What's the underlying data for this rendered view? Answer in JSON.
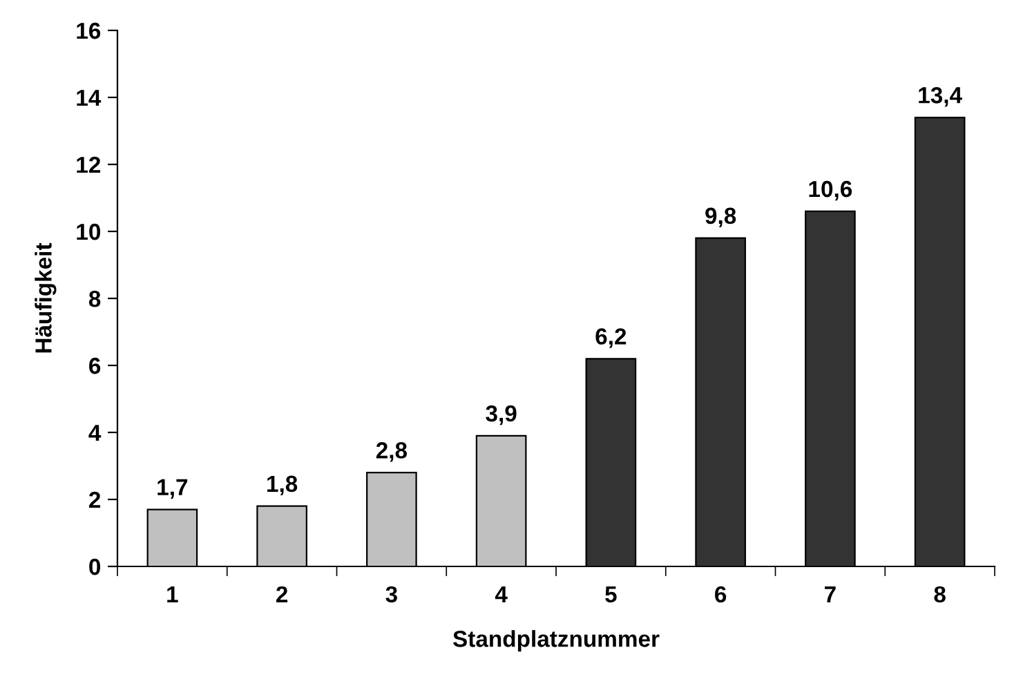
{
  "chart_data": {
    "type": "bar",
    "xlabel": "Standplatznummer",
    "ylabel": "Häufigkeit",
    "categories": [
      "1",
      "2",
      "3",
      "4",
      "5",
      "6",
      "7",
      "8"
    ],
    "values": [
      1.7,
      1.8,
      2.8,
      3.9,
      6.2,
      9.8,
      10.6,
      13.4
    ],
    "colors": [
      "#c0c0c0",
      "#c0c0c0",
      "#c0c0c0",
      "#c0c0c0",
      "#333333",
      "#333333",
      "#333333",
      "#333333"
    ],
    "value_labels": [
      "1,7",
      "1,8",
      "2,8",
      "3,9",
      "6,2",
      "9,8",
      "10,6",
      "13,4"
    ],
    "ylim": [
      0,
      16
    ],
    "yticks": [
      0,
      2,
      4,
      6,
      8,
      10,
      12,
      14,
      16
    ],
    "grid": false
  }
}
